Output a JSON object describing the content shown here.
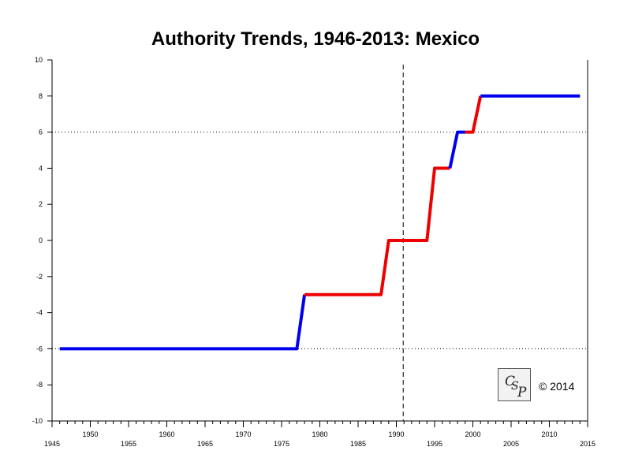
{
  "chart_data": {
    "type": "line",
    "title": "Authority Trends, 1946-2013: Mexico",
    "xlim": [
      1945,
      2015
    ],
    "ylim": [
      -10,
      10
    ],
    "x_ticks": [
      1945,
      1950,
      1955,
      1960,
      1965,
      1970,
      1975,
      1980,
      1985,
      1990,
      1995,
      2000,
      2005,
      2010,
      2015
    ],
    "y_ticks": [
      -10,
      -8,
      -6,
      -4,
      -2,
      0,
      2,
      4,
      6,
      8,
      10
    ],
    "reference_lines": {
      "horizontal_dotted": [
        6,
        -6
      ],
      "vertical_dashed": [
        1990.9
      ]
    },
    "series_colors": {
      "blue": "#0000ee",
      "red": "#ee0000"
    },
    "segments": [
      {
        "color": "blue",
        "points": [
          [
            1946,
            -6
          ],
          [
            1977,
            -6
          ],
          [
            1978,
            -3
          ]
        ]
      },
      {
        "color": "red",
        "points": [
          [
            1978,
            -3
          ],
          [
            1988,
            -3
          ],
          [
            1989,
            0
          ],
          [
            1994,
            0
          ],
          [
            1995,
            4
          ],
          [
            1997,
            4
          ]
        ]
      },
      {
        "color": "blue",
        "points": [
          [
            1997,
            4
          ],
          [
            1998,
            6
          ],
          [
            1999,
            6
          ]
        ]
      },
      {
        "color": "red",
        "points": [
          [
            1999,
            6
          ],
          [
            2000,
            6
          ],
          [
            2001,
            8
          ]
        ]
      },
      {
        "color": "blue",
        "points": [
          [
            2001,
            8
          ],
          [
            2014,
            8
          ]
        ]
      }
    ]
  },
  "logo": {
    "letters": [
      "C",
      "S",
      "P"
    ]
  },
  "copyright": "© 2014"
}
